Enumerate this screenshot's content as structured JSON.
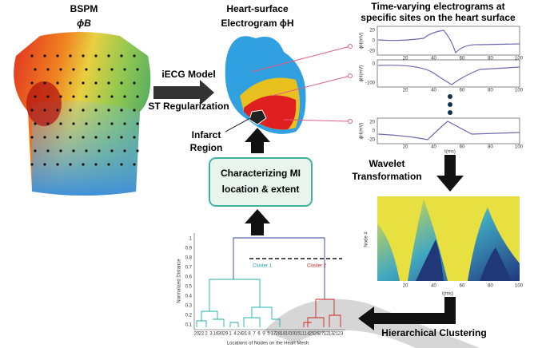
{
  "bspm": {
    "title": "BSPM",
    "symbol": "ϕB"
  },
  "heart": {
    "title": "Heart-surface",
    "subtitle": "Electrogram ϕH",
    "infarct": [
      "Infarct",
      "Region"
    ]
  },
  "model_arrow": {
    "top": "iECG Model",
    "bottom": "ST Regularization"
  },
  "characterizing_box": [
    "Characterizing MI",
    "location & extent"
  ],
  "electrograms": {
    "title": [
      "Time-varying electrograms at",
      "specific sites on the heart surface"
    ],
    "plots": [
      {
        "yticks": [
          "20",
          "0",
          "-20"
        ],
        "ylabel": "ϕH(mV)"
      },
      {
        "yticks": [
          "0",
          "-100"
        ],
        "ylabel": "ϕH(mV)"
      },
      {
        "yticks": [
          "20",
          "0",
          "-20"
        ],
        "ylabel": "ϕH(mV)"
      }
    ],
    "xticks": [
      "20",
      "40",
      "60",
      "80",
      "100"
    ],
    "xlabel": "t(ms)"
  },
  "wavelet": [
    "Wavelet",
    "Transformation"
  ],
  "heatmap": {
    "xticks": [
      "20",
      "40",
      "60",
      "80",
      "100"
    ],
    "xlabel": "t(ms)",
    "ylabel": "Node #"
  },
  "clustering_label": "Hierarchical Clustering",
  "dendrogram": {
    "ylabel": "Normalized Distance",
    "xlabel": "Locations of Nodes on the Heart Mesh",
    "yticks": [
      "0.1",
      "0.2",
      "0.3",
      "0.4",
      "0.5",
      "0.6",
      "0.7",
      "0.8",
      "0.9",
      "1"
    ],
    "cluster1": "Cluster 1",
    "cluster2": "Cluster 2",
    "leaves": [
      "20",
      "22",
      "2",
      "3",
      "16",
      "30",
      "29",
      "1",
      "4",
      "24",
      "31",
      "8",
      "7",
      "6",
      "9",
      "5",
      "17",
      "28",
      "18",
      "10",
      "19",
      "15",
      "11",
      "14",
      "25",
      "26",
      "27",
      "12",
      "13",
      "21",
      "23"
    ]
  }
}
